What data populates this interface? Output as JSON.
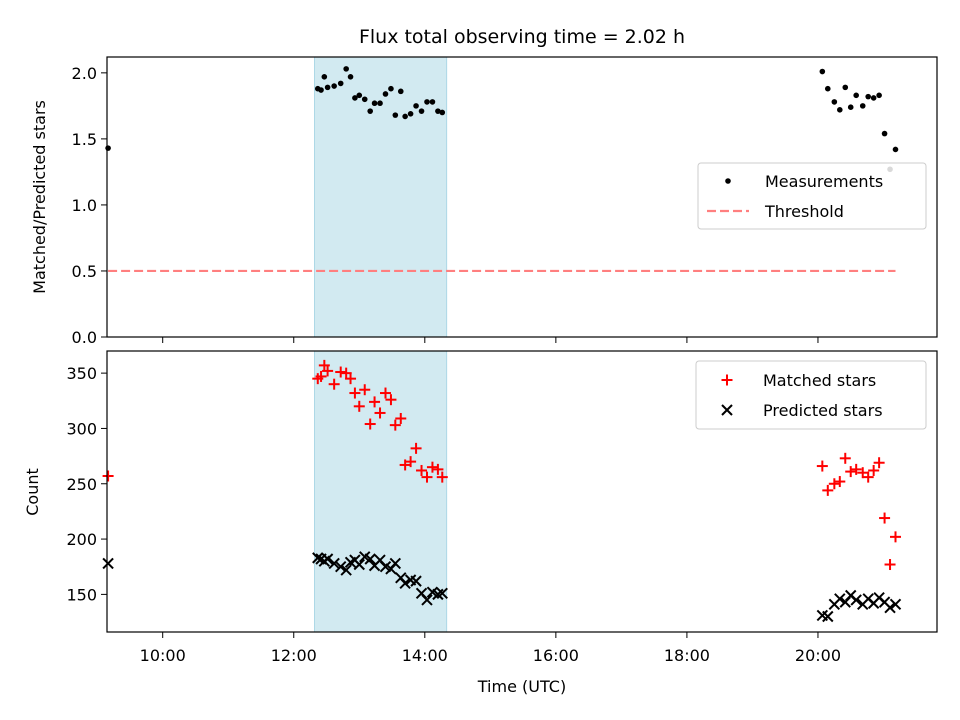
{
  "chart_data": [
    {
      "type": "scatter",
      "title": "Flux total observing time = 2.02 h",
      "xlabel": "",
      "ylabel": "Matched/Predicted stars",
      "ylim": [
        0,
        2.12
      ],
      "yticks": [
        "0.0",
        "0.5",
        "1.0",
        "1.5",
        "2.0"
      ],
      "xlim": [
        "09:09",
        "21:49"
      ],
      "highlight_span": [
        "12:19",
        "14:20"
      ],
      "legend": {
        "position": "center-right",
        "entries": [
          "Measurements",
          "Threshold"
        ]
      },
      "colors": {
        "measurements": "#000000",
        "threshold": "#ff7f7f",
        "span": "#add8e6"
      },
      "series": [
        {
          "name": "Measurements",
          "marker": "dot",
          "points": [
            [
              "09:10",
              1.43
            ],
            [
              "12:22",
              1.88
            ],
            [
              "12:25",
              1.87
            ],
            [
              "12:28",
              1.97
            ],
            [
              "12:31",
              1.89
            ],
            [
              "12:37",
              1.9
            ],
            [
              "12:43",
              1.92
            ],
            [
              "12:48",
              2.03
            ],
            [
              "12:52",
              1.97
            ],
            [
              "12:56",
              1.81
            ],
            [
              "13:00",
              1.83
            ],
            [
              "13:05",
              1.8
            ],
            [
              "13:10",
              1.71
            ],
            [
              "13:14",
              1.77
            ],
            [
              "13:19",
              1.77
            ],
            [
              "13:24",
              1.84
            ],
            [
              "13:29",
              1.88
            ],
            [
              "13:33",
              1.68
            ],
            [
              "13:38",
              1.86
            ],
            [
              "13:42",
              1.67
            ],
            [
              "13:47",
              1.69
            ],
            [
              "13:52",
              1.75
            ],
            [
              "13:57",
              1.71
            ],
            [
              "14:02",
              1.78
            ],
            [
              "14:07",
              1.78
            ],
            [
              "14:12",
              1.71
            ],
            [
              "14:16",
              1.7
            ],
            [
              "20:04",
              2.01
            ],
            [
              "20:09",
              1.88
            ],
            [
              "20:15",
              1.78
            ],
            [
              "20:20",
              1.72
            ],
            [
              "20:25",
              1.89
            ],
            [
              "20:30",
              1.74
            ],
            [
              "20:35",
              1.83
            ],
            [
              "20:41",
              1.75
            ],
            [
              "20:46",
              1.82
            ],
            [
              "20:51",
              1.81
            ],
            [
              "20:56",
              1.83
            ],
            [
              "21:01",
              1.54
            ],
            [
              "21:06",
              1.27
            ],
            [
              "21:11",
              1.42
            ]
          ]
        },
        {
          "name": "Threshold",
          "style": "dashed",
          "points": [
            [
              "09:10",
              0.5
            ],
            [
              "21:11",
              0.5
            ]
          ]
        }
      ]
    },
    {
      "type": "scatter",
      "title": "",
      "xlabel": "Time (UTC)",
      "ylabel": "Count",
      "ylim": [
        116,
        370
      ],
      "yticks": [
        "150",
        "200",
        "250",
        "300",
        "350"
      ],
      "xlim": [
        "09:09",
        "21:49"
      ],
      "xticks": [
        "10:00",
        "12:00",
        "14:00",
        "16:00",
        "18:00",
        "20:00"
      ],
      "highlight_span": [
        "12:19",
        "14:20"
      ],
      "legend": {
        "position": "top-right",
        "entries": [
          "Matched stars",
          "Predicted stars"
        ]
      },
      "colors": {
        "matched": "#ff0000",
        "predicted": "#000000",
        "span": "#add8e6"
      },
      "series": [
        {
          "name": "Matched stars",
          "marker": "plus",
          "points": [
            [
              "09:10",
              257
            ],
            [
              "12:22",
              345
            ],
            [
              "12:25",
              347
            ],
            [
              "12:28",
              357
            ],
            [
              "12:31",
              352
            ],
            [
              "12:37",
              340
            ],
            [
              "12:43",
              351
            ],
            [
              "12:48",
              350
            ],
            [
              "12:52",
              345
            ],
            [
              "12:56",
              332
            ],
            [
              "13:00",
              320
            ],
            [
              "13:05",
              335
            ],
            [
              "13:10",
              304
            ],
            [
              "13:14",
              324
            ],
            [
              "13:19",
              314
            ],
            [
              "13:24",
              332
            ],
            [
              "13:29",
              326
            ],
            [
              "13:33",
              303
            ],
            [
              "13:38",
              309
            ],
            [
              "13:42",
              267
            ],
            [
              "13:47",
              270
            ],
            [
              "13:52",
              282
            ],
            [
              "13:57",
              262
            ],
            [
              "14:02",
              256
            ],
            [
              "14:07",
              265
            ],
            [
              "14:12",
              263
            ],
            [
              "14:16",
              256
            ],
            [
              "20:04",
              266
            ],
            [
              "20:09",
              244
            ],
            [
              "20:15",
              250
            ],
            [
              "20:20",
              252
            ],
            [
              "20:25",
              273
            ],
            [
              "20:30",
              261
            ],
            [
              "20:35",
              263
            ],
            [
              "20:41",
              260
            ],
            [
              "20:46",
              256
            ],
            [
              "20:51",
              262
            ],
            [
              "20:56",
              269
            ],
            [
              "21:01",
              219
            ],
            [
              "21:06",
              177
            ],
            [
              "21:11",
              202
            ]
          ]
        },
        {
          "name": "Predicted stars",
          "marker": "x",
          "points": [
            [
              "09:10",
              178
            ],
            [
              "12:22",
              183
            ],
            [
              "12:25",
              182
            ],
            [
              "12:28",
              180
            ],
            [
              "12:31",
              182
            ],
            [
              "12:37",
              178
            ],
            [
              "12:43",
              175
            ],
            [
              "12:48",
              172
            ],
            [
              "12:52",
              179
            ],
            [
              "12:56",
              181
            ],
            [
              "13:00",
              177
            ],
            [
              "13:05",
              184
            ],
            [
              "13:10",
              182
            ],
            [
              "13:14",
              176
            ],
            [
              "13:19",
              181
            ],
            [
              "13:24",
              175
            ],
            [
              "13:29",
              173
            ],
            [
              "13:33",
              178
            ],
            [
              "13:38",
              165
            ],
            [
              "13:42",
              160
            ],
            [
              "13:47",
              163
            ],
            [
              "13:52",
              162
            ],
            [
              "13:57",
              151
            ],
            [
              "14:02",
              145
            ],
            [
              "14:07",
              152
            ],
            [
              "14:12",
              150
            ],
            [
              "14:16",
              151
            ],
            [
              "20:04",
              131
            ],
            [
              "20:09",
              130
            ],
            [
              "20:15",
              141
            ],
            [
              "20:20",
              146
            ],
            [
              "20:25",
              143
            ],
            [
              "20:30",
              149
            ],
            [
              "20:35",
              145
            ],
            [
              "20:41",
              141
            ],
            [
              "20:46",
              146
            ],
            [
              "20:51",
              142
            ],
            [
              "20:56",
              147
            ],
            [
              "21:01",
              143
            ],
            [
              "21:06",
              138
            ],
            [
              "21:11",
              141
            ]
          ]
        }
      ]
    }
  ]
}
